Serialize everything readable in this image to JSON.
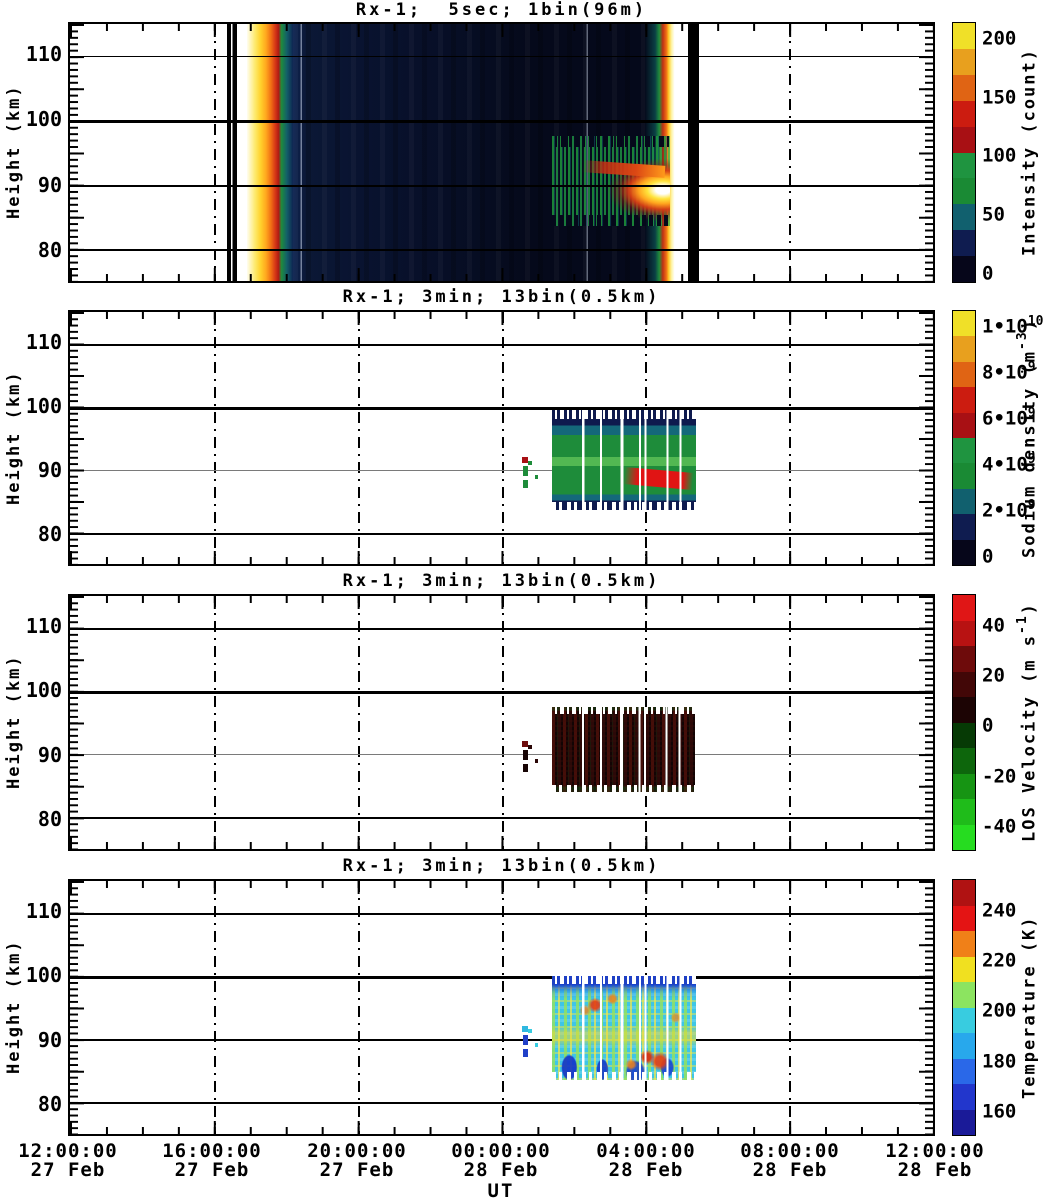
{
  "figure": {
    "background": "#ffffff"
  },
  "panels": [
    {
      "title": "Rx-1;  5sec; 1bin(96m)"
    },
    {
      "title": "Rx-1; 3min; 13bin(0.5km)"
    },
    {
      "title": "Rx-1; 3min; 13bin(0.5km)"
    },
    {
      "title": "Rx-1; 3min; 13bin(0.5km)"
    }
  ],
  "yaxis": {
    "label": "Height (km)",
    "ticks": [
      "110",
      "100",
      "90",
      "80"
    ],
    "range_km": [
      75,
      115
    ]
  },
  "xaxis": {
    "label": "UT",
    "ticks": [
      {
        "time": "12:00:00",
        "date": "27 Feb"
      },
      {
        "time": "16:00:00",
        "date": "27 Feb"
      },
      {
        "time": "20:00:00",
        "date": "27 Feb"
      },
      {
        "time": "00:00:00",
        "date": "28 Feb"
      },
      {
        "time": "04:00:00",
        "date": "28 Feb"
      },
      {
        "time": "08:00:00",
        "date": "28 Feb"
      },
      {
        "time": "12:00:00",
        "date": "28 Feb"
      }
    ]
  },
  "colorbars": [
    {
      "title_pre": "Intensity (count)",
      "title_sup": "",
      "title_post": "",
      "ticks": [
        {
          "m": "200",
          "e": ""
        },
        {
          "m": "150",
          "e": ""
        },
        {
          "m": "100",
          "e": ""
        },
        {
          "m": "50",
          "e": ""
        },
        {
          "m": "0",
          "e": ""
        }
      ],
      "range": [
        0,
        210
      ],
      "colors_bottom_to_top": [
        "#06061a",
        "#0f1c50",
        "#11606e",
        "#1a8a34",
        "#1f9440",
        "#a81014",
        "#cc1c10",
        "#e06414",
        "#e8a01e",
        "#f0e028"
      ]
    },
    {
      "title_pre": "Sodium density (m",
      "title_sup": "-3",
      "title_post": ")",
      "ticks": [
        {
          "m": "1•10",
          "e": "10"
        },
        {
          "m": "8•10",
          "e": "9"
        },
        {
          "m": "6•10",
          "e": "9"
        },
        {
          "m": "4•10",
          "e": "9"
        },
        {
          "m": "2•10",
          "e": "9"
        },
        {
          "m": "0",
          "e": ""
        }
      ],
      "range": [
        0,
        11000000000.0
      ],
      "colors_bottom_to_top": [
        "#06061a",
        "#0f1c50",
        "#11606e",
        "#1a8a34",
        "#1f9440",
        "#a81014",
        "#cc1c10",
        "#e06414",
        "#e8a01e",
        "#f0e028"
      ]
    },
    {
      "title_pre": "LOS Velocity (m s",
      "title_sup": "-1",
      "title_post": ")",
      "ticks": [
        {
          "m": "40",
          "e": ""
        },
        {
          "m": "20",
          "e": ""
        },
        {
          "m": "0",
          "e": ""
        },
        {
          "m": "-20",
          "e": ""
        },
        {
          "m": "-40",
          "e": ""
        }
      ],
      "range": [
        -50,
        50
      ],
      "colors_bottom_to_top": [
        "#26dc20",
        "#1fbc1a",
        "#169413",
        "#0d660c",
        "#063a05",
        "#1c0404",
        "#420707",
        "#6e0b0b",
        "#b81212",
        "#e01616"
      ]
    },
    {
      "title_pre": "Temperature (K)",
      "title_sup": "",
      "title_post": "",
      "ticks": [
        {
          "m": "240",
          "e": ""
        },
        {
          "m": "220",
          "e": ""
        },
        {
          "m": "200",
          "e": ""
        },
        {
          "m": "180",
          "e": ""
        },
        {
          "m": "160",
          "e": ""
        }
      ],
      "range": [
        150,
        250
      ],
      "colors_bottom_to_top": [
        "#1a1a98",
        "#2236cc",
        "#2a68e8",
        "#28a8ec",
        "#38cce0",
        "#8ce460",
        "#f0e020",
        "#f08018",
        "#e41414",
        "#b01212"
      ]
    }
  ],
  "chart_data": [
    {
      "type": "heatmap",
      "title": "Rx-1;  5sec; 1bin(96m)",
      "value_label": "Intensity (count)",
      "x_range": [
        "27 Feb 12:00:00 UT",
        "28 Feb 12:00:00 UT"
      ],
      "x_tick_interval_hours": 4,
      "x_minor_tick_hours": 1,
      "y_range_km": [
        75,
        115
      ],
      "y_gridlines_km": [
        80,
        90,
        100,
        110
      ],
      "colorbar_ticks": [
        0,
        50,
        100,
        150,
        200
      ],
      "features": [
        {
          "desc": "no data (white)",
          "x_ut": [
            "27Feb 12:00",
            "27Feb 16:20"
          ],
          "y_km": [
            75,
            115
          ],
          "value": null
        },
        {
          "desc": "black edge column then saturated calibration stripe (white/yellow/orange/red core, >200 counts, green-teal fringe)",
          "x_ut": [
            "27Feb 16:22",
            "27Feb 17:05"
          ],
          "y_km": [
            75,
            115
          ],
          "value": ">200"
        },
        {
          "desc": "dark navy background, slightly brighter left of ~23:00, darkest 00:00-05:00",
          "x_ut": [
            "27Feb 17:05",
            "28Feb 05:25"
          ],
          "y_km": [
            75,
            115
          ],
          "value": "0-30"
        },
        {
          "desc": "thin pale vertical data-gap lines",
          "x_ut": [
            "27Feb 18:25",
            "28Feb 02:25"
          ],
          "y_km": [
            75,
            115
          ],
          "value": null
        },
        {
          "desc": "striated sodium-layer burst, green/red columns with red ridge descending from ~93 km to ~86 km, white-hot core 85-89 km at right end",
          "x_ut": [
            "28Feb 01:25",
            "28Feb 04:45"
          ],
          "y_km": [
            84,
            97.5
          ],
          "value": "50->200"
        },
        {
          "desc": "bright saturated edge stripe, white gap, black column, then no data (white)",
          "x_ut": [
            "28Feb 04:45",
            "28Feb 12:00"
          ],
          "y_km": [
            75,
            115
          ],
          "value": null
        }
      ]
    },
    {
      "type": "heatmap",
      "title": "Rx-1; 3min; 13bin(0.5km)",
      "value_label": "Sodium density (m^-3)",
      "x_range": [
        "27 Feb 12:00:00 UT",
        "28 Feb 12:00:00 UT"
      ],
      "y_range_km": [
        75,
        115
      ],
      "colorbar_ticks": [
        0,
        2000000000.0,
        4000000000.0,
        6000000000.0,
        8000000000.0,
        10000000000.0
      ],
      "features": [
        {
          "desc": "isolated weak echoes (one red ~6e9 dot, green ~3e9 dots)",
          "x_ut": [
            "28Feb 00:30",
            "28Feb 00:55"
          ],
          "y_km": [
            88,
            92.5
          ]
        },
        {
          "desc": "sodium layer: navy edges <2e9 (97-99.5 and 83.5-85 km), teal ~2e9, green 3-4e9, light-green core 4-5e9 near 90-91.5 km",
          "x_ut": [
            "28Feb 01:25",
            "28Feb 05:25"
          ],
          "y_km": [
            83.5,
            99.5
          ]
        },
        {
          "desc": "red high-density tongue ~6-7e9 descending from 89 km to 85.5 km",
          "x_ut": [
            "28Feb 03:30",
            "28Feb 05:15"
          ],
          "y_km": [
            85,
            89.5
          ]
        },
        {
          "desc": "several white vertical data gaps inside layer",
          "x_ut": [
            "28Feb 02:00",
            "28Feb 04:40"
          ],
          "y_km": [
            83.5,
            99.5
          ]
        }
      ]
    },
    {
      "type": "heatmap",
      "title": "Rx-1; 3min; 13bin(0.5km)",
      "value_label": "LOS Velocity (m s^-1)",
      "x_range": [
        "27 Feb 12:00:00 UT",
        "28 Feb 12:00:00 UT"
      ],
      "y_range_km": [
        75,
        115
      ],
      "colorbar_ticks": [
        -40,
        -20,
        0,
        20,
        40
      ],
      "features": [
        {
          "desc": "isolated specks near zero velocity",
          "x_ut": [
            "28Feb 00:30",
            "28Feb 00:55"
          ],
          "y_km": [
            88,
            92.5
          ]
        },
        {
          "desc": "velocity field mostly 0 to +15 (very dark red/black), scattered -5 to -15 (dark green) flecks at layer edges; white vertical data gaps",
          "x_ut": [
            "28Feb 01:25",
            "28Feb 05:25"
          ],
          "y_km": [
            84,
            97.5
          ]
        }
      ]
    },
    {
      "type": "heatmap",
      "title": "Rx-1; 3min; 13bin(0.5km)",
      "value_label": "Temperature (K)",
      "x_range": [
        "27 Feb 12:00:00 UT",
        "28 Feb 12:00:00 UT"
      ],
      "y_range_km": [
        75,
        115
      ],
      "colorbar_ticks": [
        160,
        180,
        200,
        220,
        240
      ],
      "features": [
        {
          "desc": "isolated cold specks ~165-185 K (blue)",
          "x_ut": [
            "28Feb 00:30",
            "28Feb 00:55"
          ],
          "y_km": [
            88,
            92.5
          ]
        },
        {
          "desc": "mottled temperatures mostly 185-215 K (cyan/green/yellow)",
          "x_ut": [
            "28Feb 01:25",
            "28Feb 05:25"
          ],
          "y_km": [
            83.5,
            100
          ]
        },
        {
          "desc": "cold <170 K (dark blue) along top edge 97-100 km and patches near 84-86 km",
          "x_ut": [
            "28Feb 01:25",
            "28Feb 05:25"
          ],
          "y_km": [
            84,
            100
          ]
        },
        {
          "desc": "warm spots 220-245 K (orange/red) scattered, strongest near 84-87 km after 04:00",
          "x_ut": [
            "28Feb 02:00",
            "28Feb 05:15"
          ],
          "y_km": [
            84,
            96
          ]
        }
      ]
    }
  ]
}
